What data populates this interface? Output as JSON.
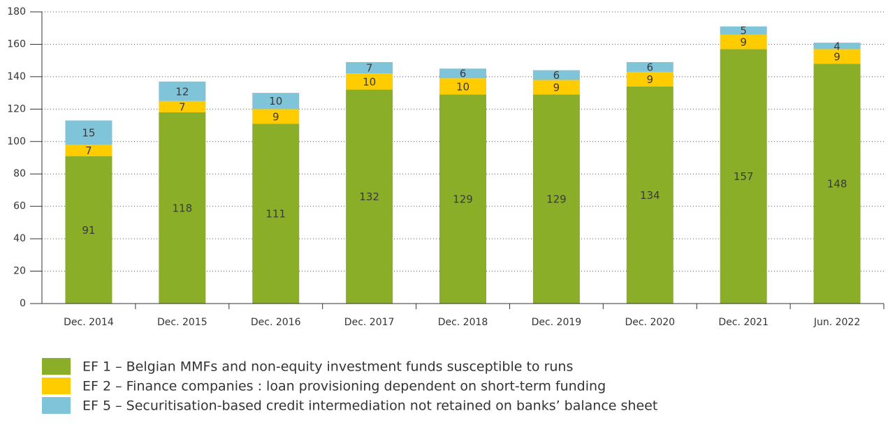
{
  "chart_data": {
    "type": "stacked_bar",
    "categories": [
      "Dec. 2014",
      "Dec. 2015",
      "Dec. 2016",
      "Dec. 2017",
      "Dec. 2018",
      "Dec. 2019",
      "Dec. 2020",
      "Dec. 2021",
      "Jun. 2022"
    ],
    "series": [
      {
        "name": "EF 1 – Belgian MMFs and non-equity investment funds susceptible to runs",
        "color": "#8aae27",
        "values": [
          91,
          118,
          111,
          132,
          129,
          129,
          134,
          157,
          148
        ]
      },
      {
        "name": "EF 2 – Finance companies : loan provisioning dependent on short-term funding",
        "color": "#ffcc00",
        "values": [
          7,
          7,
          9,
          10,
          10,
          9,
          9,
          9,
          9
        ]
      },
      {
        "name": "EF 5 – Securitisation-based credit intermediation not retained on banks’ balance sheet",
        "color": "#80c4da",
        "values": [
          15,
          12,
          10,
          7,
          6,
          6,
          6,
          5,
          4
        ]
      }
    ],
    "ylim": [
      0,
      180
    ],
    "yticks": [
      0,
      20,
      40,
      60,
      80,
      100,
      120,
      140,
      160,
      180
    ],
    "grid": true
  }
}
